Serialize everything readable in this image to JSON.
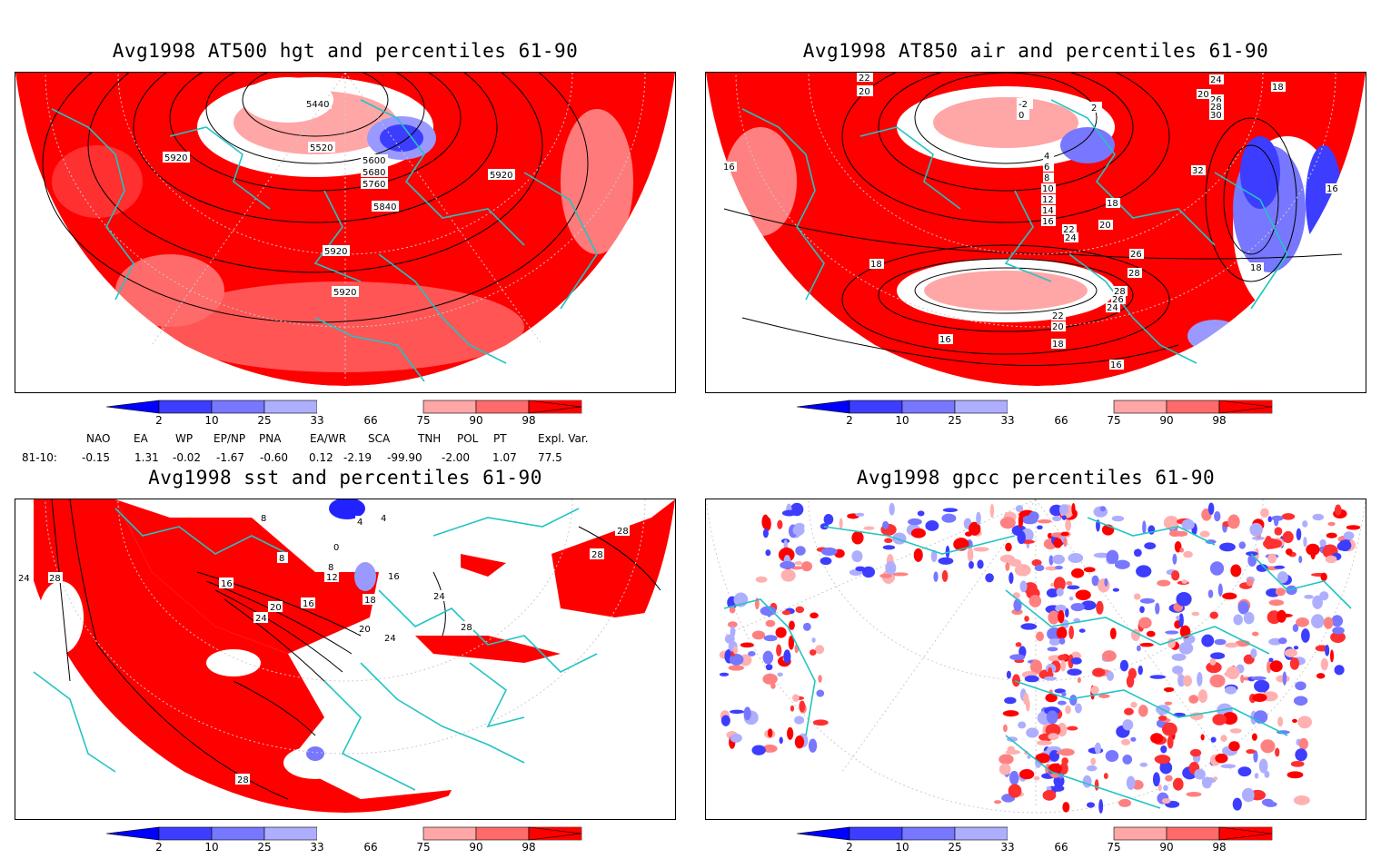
{
  "panels": [
    {
      "title": "Avg1998 AT500 hgt and percentiles 61-90",
      "contour_labels": [
        "5440",
        "5520",
        "5600",
        "5680",
        "5760",
        "5840",
        "5920",
        "5920",
        "5920",
        "5920"
      ]
    },
    {
      "title": "Avg1998 AT850 air and percentiles 61-90",
      "contour_labels": [
        "22",
        "20",
        "0",
        "2",
        "-2",
        "4",
        "6",
        "8",
        "10",
        "12",
        "14",
        "16",
        "18",
        "20",
        "22",
        "24",
        "26",
        "28",
        "28",
        "26",
        "24",
        "22",
        "20",
        "18",
        "16",
        "16",
        "16",
        "18",
        "18",
        "18",
        "32",
        "20",
        "24",
        "26",
        "28",
        "30",
        "16"
      ]
    },
    {
      "title": "Avg1998 sst and percentiles 61-90",
      "contour_labels": [
        "24",
        "28",
        "8",
        "8",
        "4",
        "0",
        "4",
        "8",
        "12",
        "16",
        "16",
        "20",
        "16",
        "18",
        "20",
        "24",
        "24",
        "28",
        "28",
        "28",
        "28",
        "24"
      ]
    },
    {
      "title": "Avg1998 gpcc percentiles 61-90",
      "contour_labels": []
    }
  ],
  "colorbar": {
    "ticks": [
      "2",
      "10",
      "25",
      "33",
      "66",
      "75",
      "90",
      "98"
    ],
    "colors": [
      "#0000ff",
      "#3d3dff",
      "#7777ff",
      "#aeaeff",
      "#ffffff",
      "#ffa6a6",
      "#ff6a6a",
      "#ff3030",
      "#ff0000"
    ]
  },
  "indices": {
    "headers": [
      "NAO",
      "EA",
      "WP",
      "EP/NP",
      "PNA",
      "EA/WR",
      "SCA",
      "TNH",
      "POL",
      "PT",
      "Expl. Var."
    ],
    "row_label": "81-10:",
    "values": [
      "-0.15",
      "1.31",
      "-0.02",
      "-1.67",
      "-0.60",
      "0.12",
      "-2.19",
      "-99.90",
      "-2.00",
      "1.07",
      "77.5"
    ]
  },
  "colors": {
    "coast": "#22c4c4",
    "contour": "#000000",
    "red_strong": "#ff0000",
    "red_mid": "#ff3030",
    "red_light": "#ff8080",
    "blue_strong": "#2222ff",
    "blue_light": "#9999ff"
  }
}
